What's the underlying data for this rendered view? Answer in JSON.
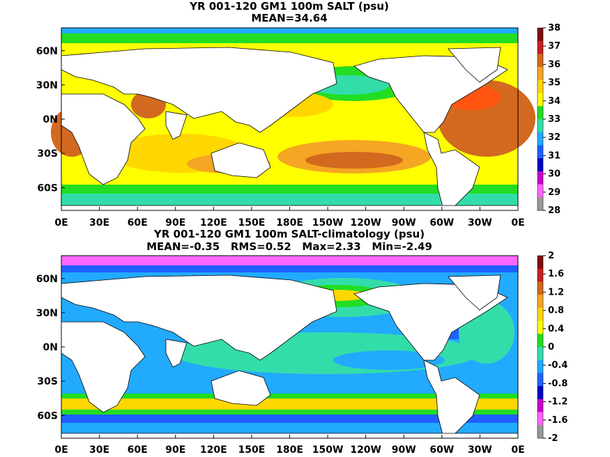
{
  "top_panel": {
    "title_line1": "YR 001-120 GM1 100m SALT (psu)",
    "title_line2": "MEAN=34.64",
    "colorbar": {
      "labels": [
        "38",
        "37",
        "36",
        "35",
        "34",
        "33",
        "32",
        "31",
        "30",
        "29",
        "28"
      ],
      "colors": [
        "#7f0f0f",
        "#c82020",
        "#d2691e",
        "#f5a623",
        "#ffd700",
        "#ffff00",
        "#22dd22",
        "#33ddaa",
        "#22aaff",
        "#1e60ff",
        "#0000cc",
        "#cc00cc",
        "#ff66ff",
        "#999999"
      ]
    }
  },
  "bottom_panel": {
    "title_line1": "YR 001-120 GM1 100m SALT-climatology (psu)",
    "title_line2": "MEAN=-0.35   RMS=0.52   Max=2.33   Min=-2.49",
    "colorbar": {
      "labels": [
        "2",
        "1.6",
        "1.2",
        "0.8",
        "0.4",
        "0",
        "-0.4",
        "-0.8",
        "-1.2",
        "-1.6",
        "-2"
      ],
      "colors": [
        "#7f0f0f",
        "#c82020",
        "#d2691e",
        "#f5a623",
        "#ffd700",
        "#ffff00",
        "#22dd22",
        "#33ddaa",
        "#22aaff",
        "#1e60ff",
        "#0000cc",
        "#cc00cc",
        "#ff66ff",
        "#999999"
      ]
    }
  },
  "axes": {
    "lat_labels": [
      "60N",
      "30N",
      "0N",
      "30S",
      "60S"
    ],
    "lon_labels": [
      "0E",
      "30E",
      "60E",
      "90E",
      "120E",
      "150E",
      "180E",
      "150W",
      "120W",
      "90W",
      "60W",
      "30W",
      "0E"
    ]
  }
}
